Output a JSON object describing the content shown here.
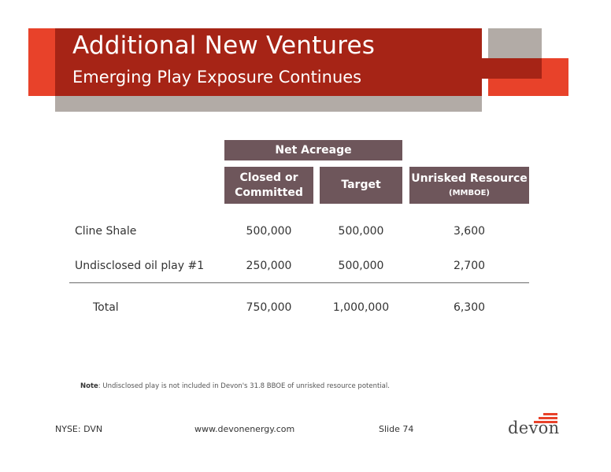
{
  "header": {
    "title": "Additional New Ventures",
    "subtitle": "Emerging Play Exposure Continues"
  },
  "table": {
    "group_header": "Net Acreage",
    "columns": {
      "closed_line1": "Closed or",
      "closed_line2": "Committed",
      "target": "Target",
      "unrisked": "Unrisked Resource",
      "unrisked_unit": "(MMBOE)"
    },
    "rows": [
      {
        "label": "Cline Shale",
        "closed": "500,000",
        "target": "500,000",
        "unrisked": "3,600"
      },
      {
        "label": "Undisclosed oil play #1",
        "closed": "250,000",
        "target": "500,000",
        "unrisked": "2,700"
      }
    ],
    "total": {
      "label": "Total",
      "closed": "750,000",
      "target": "1,000,000",
      "unrisked": "6,300"
    }
  },
  "note": {
    "label": "Note",
    "text": ": Undisclosed play is not included in Devon's 31.8 BBOE of unrisked resource potential."
  },
  "footer": {
    "ticker": "NYSE: DVN",
    "website": "www.devonenergy.com",
    "slide": "Slide 74"
  },
  "logo": {
    "text": "devon"
  },
  "colors": {
    "accent_red": "#e8422a",
    "dark_red": "#a62416",
    "gray": "#b2aba6",
    "header_box": "#6e565b"
  }
}
